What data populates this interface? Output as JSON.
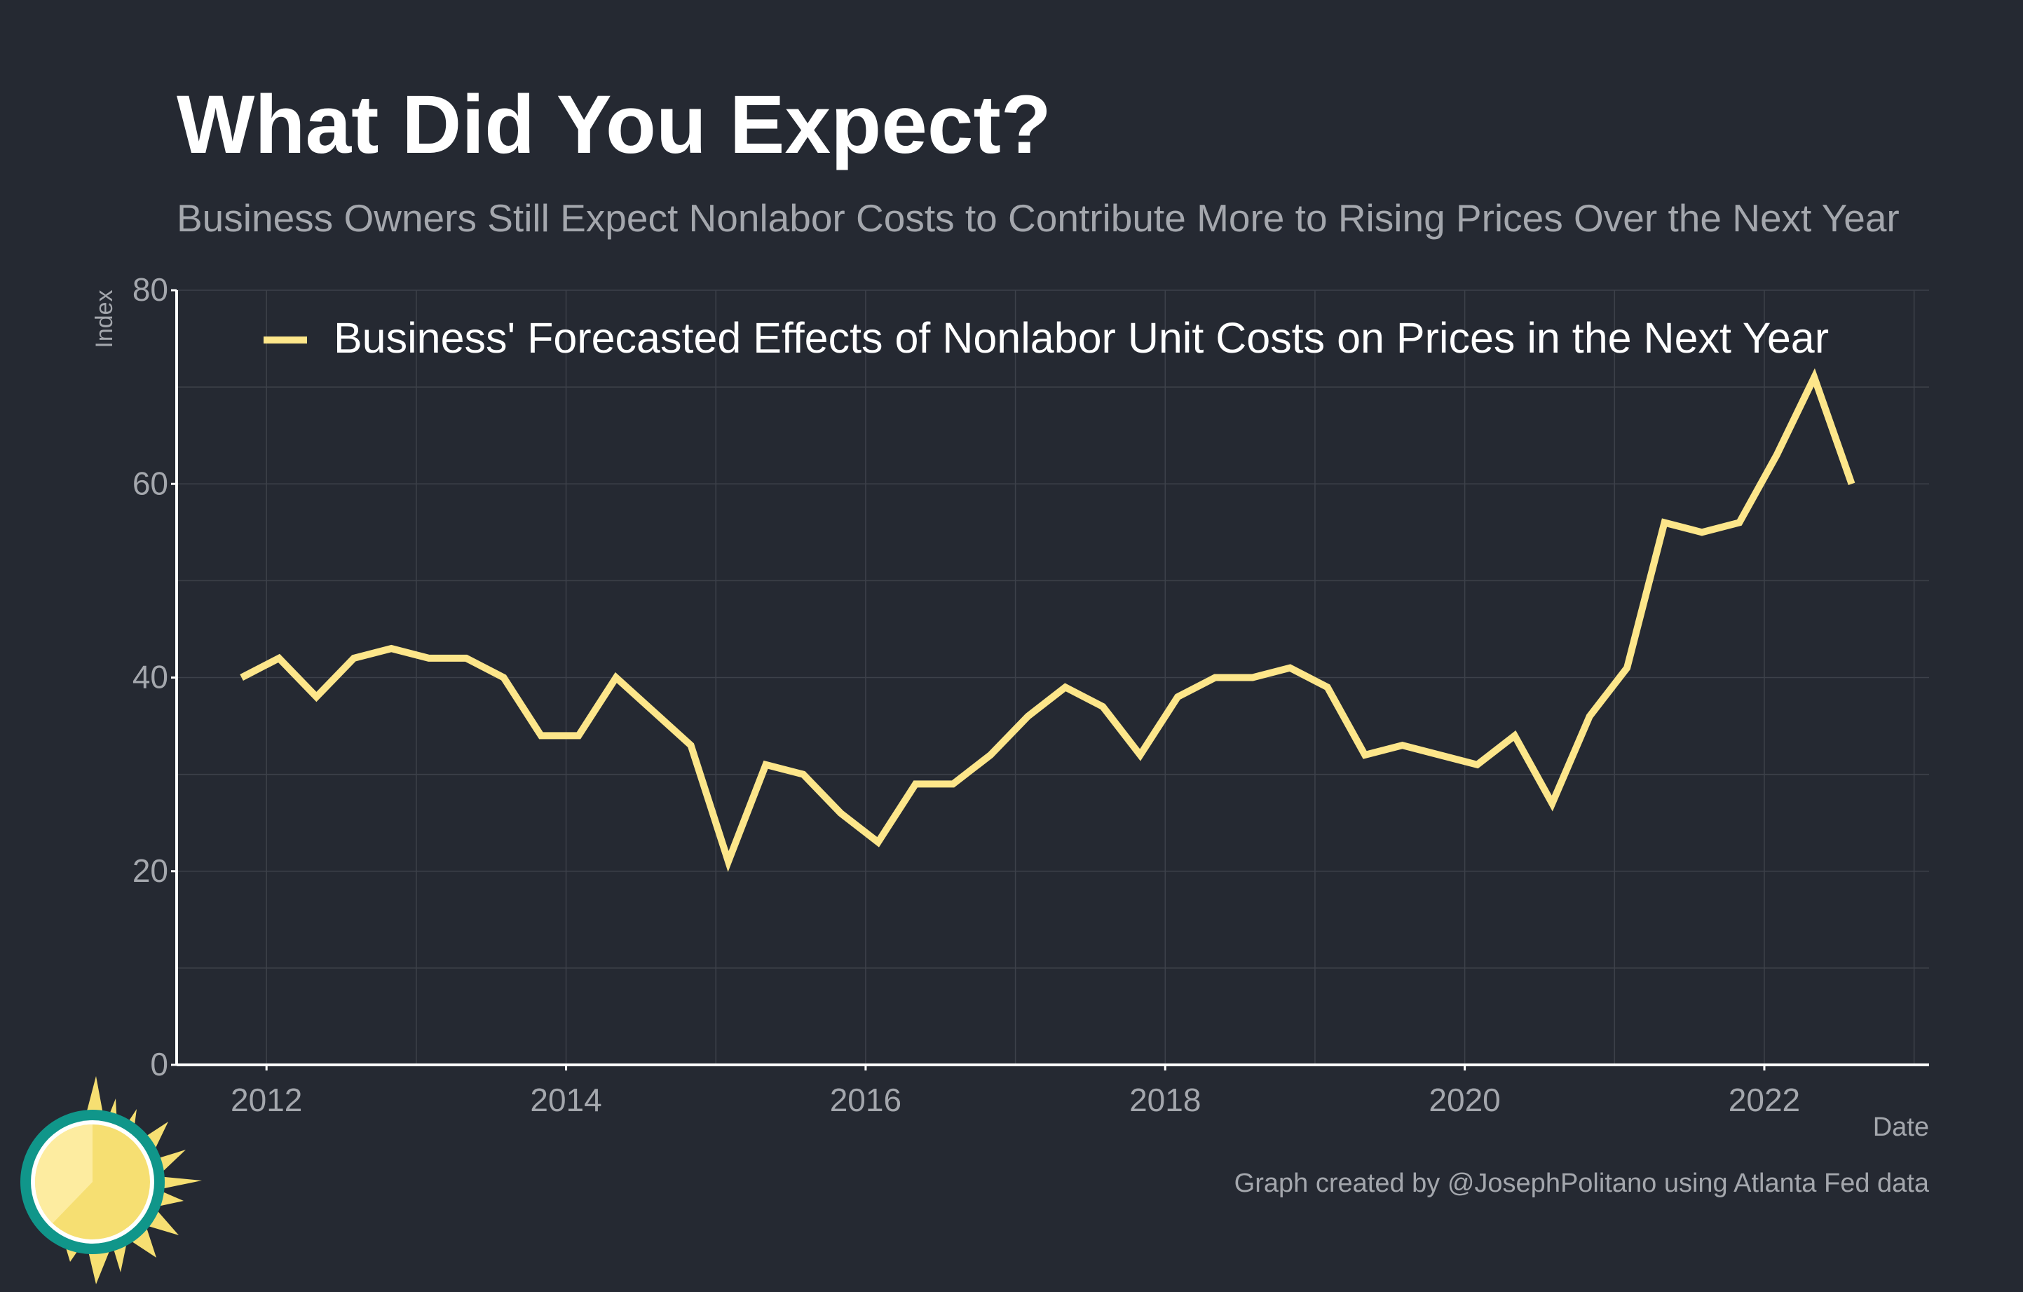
{
  "colors": {
    "background": "#252932",
    "series": "#fde68a",
    "grid": "#3d414a",
    "axis": "#ffffff",
    "muted_text": "#a4a7ad",
    "title": "#ffffff",
    "logo_sun": "#f6df72",
    "logo_ring": "#10968a"
  },
  "chart": {
    "title": "What Did You Expect?",
    "subtitle": "Business Owners Still Expect Nonlabor Costs to Contribute More to Rising Prices Over the Next Year",
    "caption": "Graph created by @JosephPolitano using Atlanta Fed data"
  },
  "logo": {
    "icon": "sun-logo-icon"
  },
  "chart_data": {
    "type": "line",
    "title": "What Did You Expect?",
    "subtitle": "Business Owners Still Expect Nonlabor Costs to Contribute More to Rising Prices Over the Next Year",
    "xlabel": "Date",
    "ylabel": "Index",
    "xlim": [
      2011.4,
      2023.1
    ],
    "ylim": [
      0,
      80
    ],
    "x_ticks": [
      {
        "value": 2012,
        "label": "2012"
      },
      {
        "value": 2014,
        "label": "2014"
      },
      {
        "value": 2016,
        "label": "2016"
      },
      {
        "value": 2018,
        "label": "2018"
      },
      {
        "value": 2020,
        "label": "2020"
      },
      {
        "value": 2022,
        "label": "2022"
      }
    ],
    "y_ticks": [
      {
        "value": 0,
        "label": "0"
      },
      {
        "value": 20,
        "label": "20"
      },
      {
        "value": 40,
        "label": "40"
      },
      {
        "value": 60,
        "label": "60"
      },
      {
        "value": 80,
        "label": "80"
      }
    ],
    "grid": true,
    "legend_position": "top",
    "series": [
      {
        "name": "Business' Forecasted Effects of Nonlabor Unit Costs on Prices in the Next Year",
        "color": "#fde68a",
        "points": [
          [
            "2011-11",
            40
          ],
          [
            "2012-02",
            42
          ],
          [
            "2012-05",
            38
          ],
          [
            "2012-08",
            42
          ],
          [
            "2012-11",
            43
          ],
          [
            "2013-02",
            42
          ],
          [
            "2013-05",
            42
          ],
          [
            "2013-08",
            40
          ],
          [
            "2013-11",
            34
          ],
          [
            "2014-02",
            34
          ],
          [
            "2014-05",
            40
          ],
          [
            "2014-08",
            36.5
          ],
          [
            "2014-11",
            33
          ],
          [
            "2015-02",
            21
          ],
          [
            "2015-05",
            31
          ],
          [
            "2015-08",
            30
          ],
          [
            "2015-11",
            26
          ],
          [
            "2016-02",
            23
          ],
          [
            "2016-05",
            29
          ],
          [
            "2016-08",
            29
          ],
          [
            "2016-11",
            32
          ],
          [
            "2017-02",
            36
          ],
          [
            "2017-05",
            39
          ],
          [
            "2017-08",
            37
          ],
          [
            "2017-11",
            32
          ],
          [
            "2018-02",
            38
          ],
          [
            "2018-05",
            40
          ],
          [
            "2018-08",
            40
          ],
          [
            "2018-11",
            41
          ],
          [
            "2019-02",
            39
          ],
          [
            "2019-05",
            32
          ],
          [
            "2019-08",
            33
          ],
          [
            "2019-11",
            32
          ],
          [
            "2020-02",
            31
          ],
          [
            "2020-05",
            34
          ],
          [
            "2020-08",
            27
          ],
          [
            "2020-11",
            36
          ],
          [
            "2021-02",
            41
          ],
          [
            "2021-05",
            56
          ],
          [
            "2021-08",
            55
          ],
          [
            "2021-11",
            56
          ],
          [
            "2022-02",
            63
          ],
          [
            "2022-05",
            71
          ],
          [
            "2022-08",
            60
          ]
        ]
      }
    ]
  }
}
